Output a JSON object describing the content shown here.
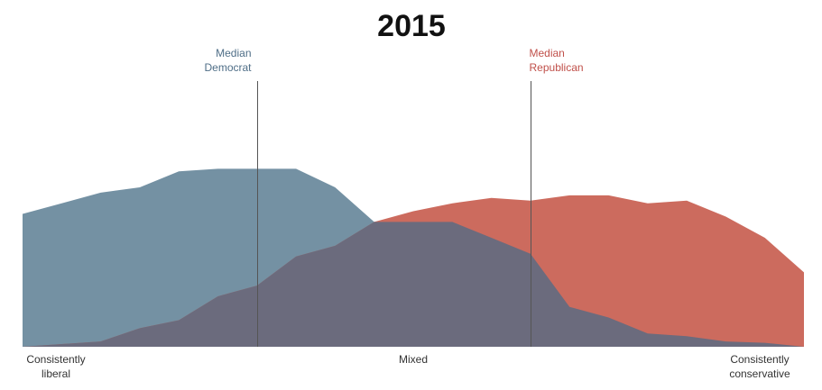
{
  "chart_data": {
    "type": "area",
    "title": "2015",
    "xlabel": "",
    "ylabel": "",
    "xlim": [
      0,
      20
    ],
    "ylim": [
      0,
      100
    ],
    "grid": false,
    "legend": "none",
    "x": [
      0,
      1,
      2,
      3,
      4,
      5,
      6,
      7,
      8,
      9,
      10,
      11,
      12,
      13,
      14,
      15,
      16,
      17,
      18,
      19,
      20
    ],
    "series": [
      {
        "color": "#7491a3",
        "values": [
          50,
          54,
          58,
          60,
          66,
          67,
          67,
          67,
          60,
          47,
          47,
          47,
          41,
          35,
          15,
          11,
          5,
          4,
          2,
          1.5,
          0
        ]
      },
      {
        "color": "#cc6b5e",
        "values": [
          0,
          1,
          2,
          7,
          10,
          19,
          23,
          34,
          38,
          47,
          51,
          54,
          56,
          55,
          57,
          57,
          54,
          55,
          49,
          41,
          28
        ]
      }
    ],
    "overlap_color": "#6b6b7d",
    "annotations": [
      {
        "text_lines": [
          "Median",
          "Democrat"
        ],
        "x": 6,
        "color": "#4f6e87",
        "align": "right"
      },
      {
        "text_lines": [
          "Median",
          "Republican"
        ],
        "x": 13,
        "color": "#c0504a",
        "align": "left"
      }
    ],
    "x_tick_labels": [
      {
        "text_lines": [
          "Consistently",
          "liberal"
        ],
        "x": 0
      },
      {
        "text_lines": [
          "Mixed"
        ],
        "x": 10
      },
      {
        "text_lines": [
          "Consistently",
          "conservative"
        ],
        "x": 20
      }
    ]
  }
}
